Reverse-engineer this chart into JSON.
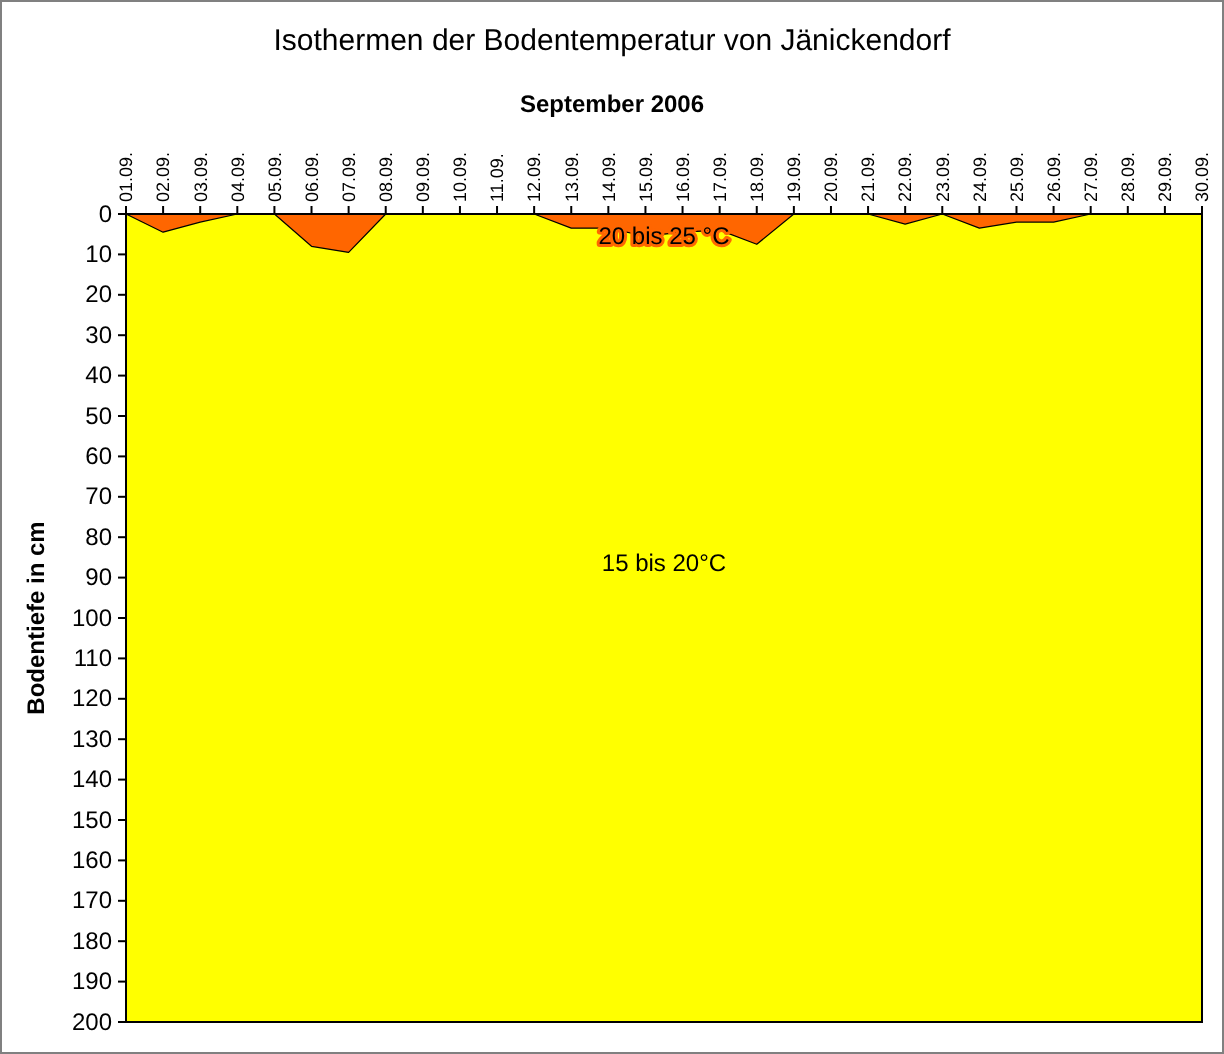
{
  "chart_data": {
    "type": "area",
    "title": "Isothermen der Bodentemperatur von Jänickendorf",
    "subtitle": "September 2006",
    "ylabel": "Bodentiefe in cm",
    "categories": [
      "01.09.",
      "02.09.",
      "03.09.",
      "04.09.",
      "05.09.",
      "06.09.",
      "07.09.",
      "08.09.",
      "09.09.",
      "10.09.",
      "11.09.",
      "12.09.",
      "13.09.",
      "14.09.",
      "15.09.",
      "16.09.",
      "17.09.",
      "18.09.",
      "19.09.",
      "20.09.",
      "21.09.",
      "22.09.",
      "23.09.",
      "24.09.",
      "25.09.",
      "26.09.",
      "27.09.",
      "28.09.",
      "29.09.",
      "30.09."
    ],
    "series": [
      {
        "name": "20 bis 25 °C",
        "color": "#ff6600",
        "values": [
          0,
          4.5,
          2,
          0,
          0,
          8,
          9.5,
          0,
          0,
          0,
          0,
          0,
          3.5,
          3.5,
          5.5,
          4.5,
          4,
          7.5,
          0,
          0,
          0,
          2.5,
          0,
          3.5,
          2,
          2,
          0,
          0,
          0,
          0
        ]
      }
    ],
    "annotations": [
      "15 bis 20°C"
    ],
    "ylim": [
      200,
      0
    ],
    "yticks": [
      0,
      10,
      20,
      30,
      40,
      50,
      60,
      70,
      80,
      90,
      100,
      110,
      120,
      130,
      140,
      150,
      160,
      170,
      180,
      190,
      200
    ]
  }
}
